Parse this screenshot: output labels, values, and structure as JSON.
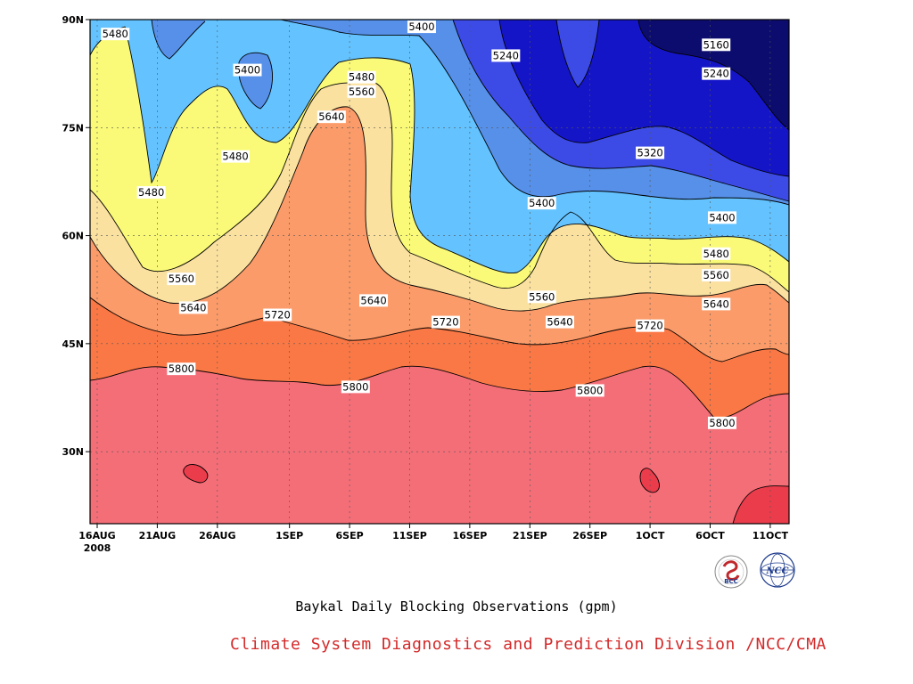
{
  "chart_data": {
    "type": "heatmap",
    "subtype": "filled-contour",
    "title": "",
    "caption": "Baykal Daily Blocking Observations (gpm)",
    "xlabel": "",
    "ylabel": "",
    "y_range": [
      20,
      90
    ],
    "x_range_days_from_16aug": [
      0,
      56
    ],
    "x_ticks": [
      {
        "label": "16AUG",
        "sublabel": "2008",
        "day": 0
      },
      {
        "label": "21AUG",
        "day": 5
      },
      {
        "label": "26AUG",
        "day": 10
      },
      {
        "label": "1SEP",
        "day": 16
      },
      {
        "label": "6SEP",
        "day": 21
      },
      {
        "label": "11SEP",
        "day": 26
      },
      {
        "label": "16SEP",
        "day": 31
      },
      {
        "label": "21SEP",
        "day": 36
      },
      {
        "label": "26SEP",
        "day": 41
      },
      {
        "label": "1OCT",
        "day": 46
      },
      {
        "label": "6OCT",
        "day": 51
      },
      {
        "label": "11OCT",
        "day": 56
      }
    ],
    "y_ticks": [
      {
        "label": "30N",
        "lat": 30
      },
      {
        "label": "45N",
        "lat": 45
      },
      {
        "label": "60N",
        "lat": 60
      },
      {
        "label": "75N",
        "lat": 75
      },
      {
        "label": "90N",
        "lat": 90
      }
    ],
    "grid": true,
    "levels": [
      5160,
      5240,
      5320,
      5400,
      5480,
      5560,
      5640,
      5720,
      5800,
      5880
    ],
    "level_colors": {
      "below_5160": "#0c0c6e",
      "5160_5240": "#1515c8",
      "5240_5320": "#3c4be6",
      "5320_5400": "#5690e8",
      "5400_5480": "#64c3ff",
      "5480_5560": "#fafa78",
      "5560_5640": "#fae1a0",
      "5640_5720": "#fa9b69",
      "5720_5800": "#fa7845",
      "5800_5880": "#f46e78",
      "above_5880": "#eb3c4b"
    },
    "contour_labels": [
      {
        "text": "5480",
        "day": 1.5,
        "lat": 88
      },
      {
        "text": "5400",
        "day": 12.5,
        "lat": 83
      },
      {
        "text": "5400",
        "day": 27,
        "lat": 89
      },
      {
        "text": "5480",
        "day": 22,
        "lat": 82
      },
      {
        "text": "5560",
        "day": 22,
        "lat": 80
      },
      {
        "text": "5640",
        "day": 19.5,
        "lat": 76.5
      },
      {
        "text": "5480",
        "day": 11.5,
        "lat": 71
      },
      {
        "text": "5480",
        "day": 4.5,
        "lat": 66
      },
      {
        "text": "5240",
        "day": 34,
        "lat": 85
      },
      {
        "text": "5160",
        "day": 51.5,
        "lat": 86.5
      },
      {
        "text": "5240",
        "day": 51.5,
        "lat": 82.5
      },
      {
        "text": "5320",
        "day": 46,
        "lat": 71.5
      },
      {
        "text": "5400",
        "day": 37,
        "lat": 64.5
      },
      {
        "text": "5400",
        "day": 52,
        "lat": 62.5
      },
      {
        "text": "5480",
        "day": 51.5,
        "lat": 57.5
      },
      {
        "text": "5560",
        "day": 51.5,
        "lat": 54.5
      },
      {
        "text": "5640",
        "day": 51.5,
        "lat": 50.5
      },
      {
        "text": "5560",
        "day": 7,
        "lat": 54
      },
      {
        "text": "5640",
        "day": 8,
        "lat": 50
      },
      {
        "text": "5720",
        "day": 15,
        "lat": 49
      },
      {
        "text": "5640",
        "day": 23,
        "lat": 51
      },
      {
        "text": "5720",
        "day": 29,
        "lat": 48
      },
      {
        "text": "5560",
        "day": 37,
        "lat": 51.5
      },
      {
        "text": "5640",
        "day": 38.5,
        "lat": 48
      },
      {
        "text": "5720",
        "day": 46,
        "lat": 47.5
      },
      {
        "text": "5800",
        "day": 7,
        "lat": 41.5
      },
      {
        "text": "5800",
        "day": 21.5,
        "lat": 39
      },
      {
        "text": "5800",
        "day": 41,
        "lat": 38.5
      },
      {
        "text": "5800",
        "day": 52,
        "lat": 34
      }
    ]
  },
  "credit": "Climate System Diagnostics and Prediction Division /NCC/CMA",
  "logos": {
    "left": {
      "text": "BCC",
      "color": "#c0282c",
      "accent": "#1c3a8c"
    },
    "right": {
      "text": "NCC",
      "color": "#1c3a8c"
    }
  }
}
